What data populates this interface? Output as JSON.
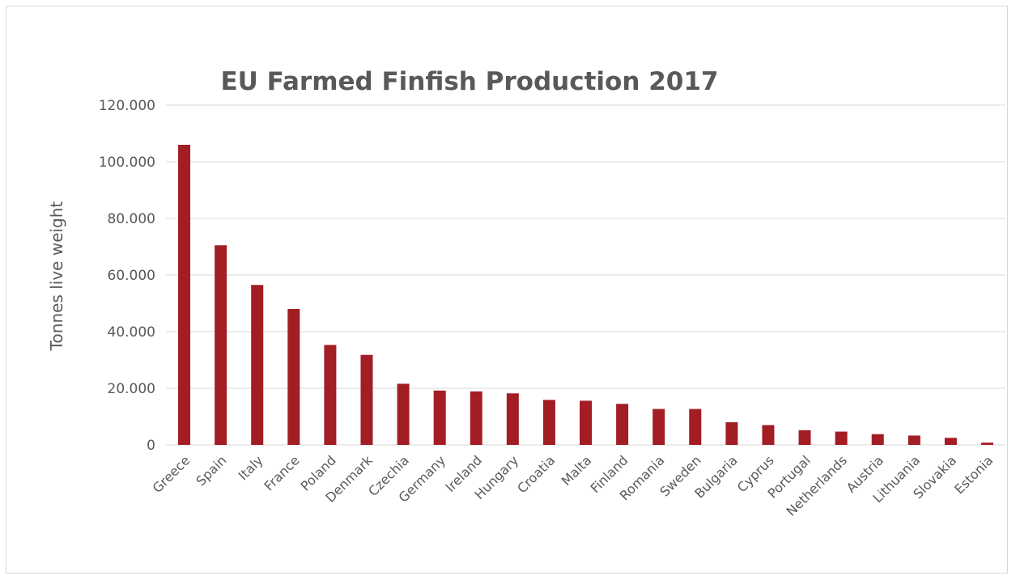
{
  "chart_data": {
    "type": "bar",
    "title": "EU Farmed Finfish Production 2017",
    "xlabel": "",
    "ylabel": "Tonnes live weight",
    "ylim": [
      0,
      120000
    ],
    "yticks": [
      "0",
      "20.000",
      "40.000",
      "60.000",
      "80.000",
      "100.000",
      "120.000"
    ],
    "grid": true,
    "legend": "none",
    "bar_color": "#a31d24",
    "categories": [
      "Greece",
      "Spain",
      "Italy",
      "France",
      "Poland",
      "Denmark",
      "Czechia",
      "Germany",
      "Ireland",
      "Hungary",
      "Croatia",
      "Malta",
      "Finland",
      "Romania",
      "Sweden",
      "Bulgaria",
      "Cyprus",
      "Portugal",
      "Netherlands",
      "Austria",
      "Lithuania",
      "Slovakia",
      "Estonia"
    ],
    "values": [
      106000,
      70500,
      56500,
      48000,
      35300,
      31800,
      21600,
      19200,
      18900,
      18200,
      15900,
      15600,
      14500,
      12700,
      12700,
      8000,
      7000,
      5200,
      4700,
      3800,
      3300,
      2500,
      800
    ]
  }
}
